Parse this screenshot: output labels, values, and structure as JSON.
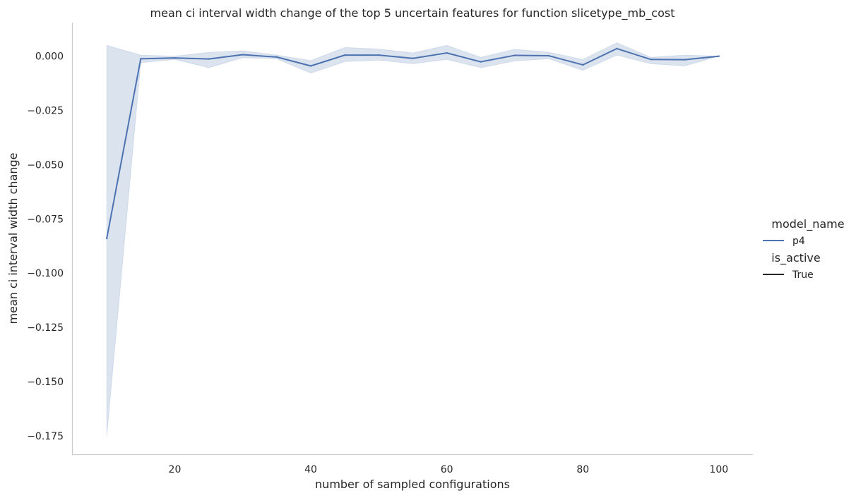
{
  "chart_data": {
    "type": "line",
    "title": "mean ci interval width change of the top 5 uncertain features for function slicetype_mb_cost",
    "xlabel": "number of sampled configurations",
    "ylabel": "mean ci interval width change",
    "xlim": [
      5,
      105
    ],
    "ylim": [
      -0.1835,
      0.0155
    ],
    "xticks": [
      20,
      40,
      60,
      80,
      100
    ],
    "yticks": [
      0.0,
      -0.025,
      -0.05,
      -0.075,
      -0.1,
      -0.125,
      -0.15,
      -0.175
    ],
    "ytick_labels": [
      "0.000",
      "−0.025",
      "−0.050",
      "−0.075",
      "−0.100",
      "−0.125",
      "−0.150",
      "−0.175"
    ],
    "grid": false,
    "legend_placement": "right",
    "legend": {
      "hue_title": "model_name",
      "hue_entries": [
        {
          "label": "p4",
          "color": "#4c72b0"
        }
      ],
      "style_title": "is_active",
      "style_entries": [
        {
          "label": "True",
          "color": "#262626"
        }
      ]
    },
    "series": [
      {
        "name": "p4",
        "color": "#4c72b0",
        "x": [
          10,
          15,
          20,
          25,
          30,
          35,
          40,
          45,
          50,
          55,
          60,
          65,
          70,
          75,
          80,
          85,
          90,
          95,
          100
        ],
        "y": [
          -0.084,
          -0.0012,
          -0.0008,
          -0.0013,
          0.0007,
          -0.0004,
          -0.0045,
          0.0005,
          0.0005,
          -0.001,
          0.0015,
          -0.0026,
          0.0004,
          0.0002,
          -0.004,
          0.0035,
          -0.0015,
          -0.0016,
          0.0
        ],
        "ci_low": [
          -0.175,
          -0.003,
          -0.0015,
          -0.0053,
          -0.0007,
          -0.0012,
          -0.0078,
          -0.0025,
          -0.0018,
          -0.0035,
          -0.0015,
          -0.0053,
          -0.0022,
          -0.0012,
          -0.0065,
          0.0005,
          -0.0035,
          -0.0045,
          0.0
        ],
        "ci_high": [
          0.005,
          0.0005,
          0.0,
          0.0018,
          0.0025,
          0.0005,
          -0.002,
          0.004,
          0.0033,
          0.0015,
          0.005,
          -0.0005,
          0.0032,
          0.0018,
          -0.0015,
          0.0062,
          -0.0005,
          0.0005,
          0.0
        ]
      }
    ]
  }
}
